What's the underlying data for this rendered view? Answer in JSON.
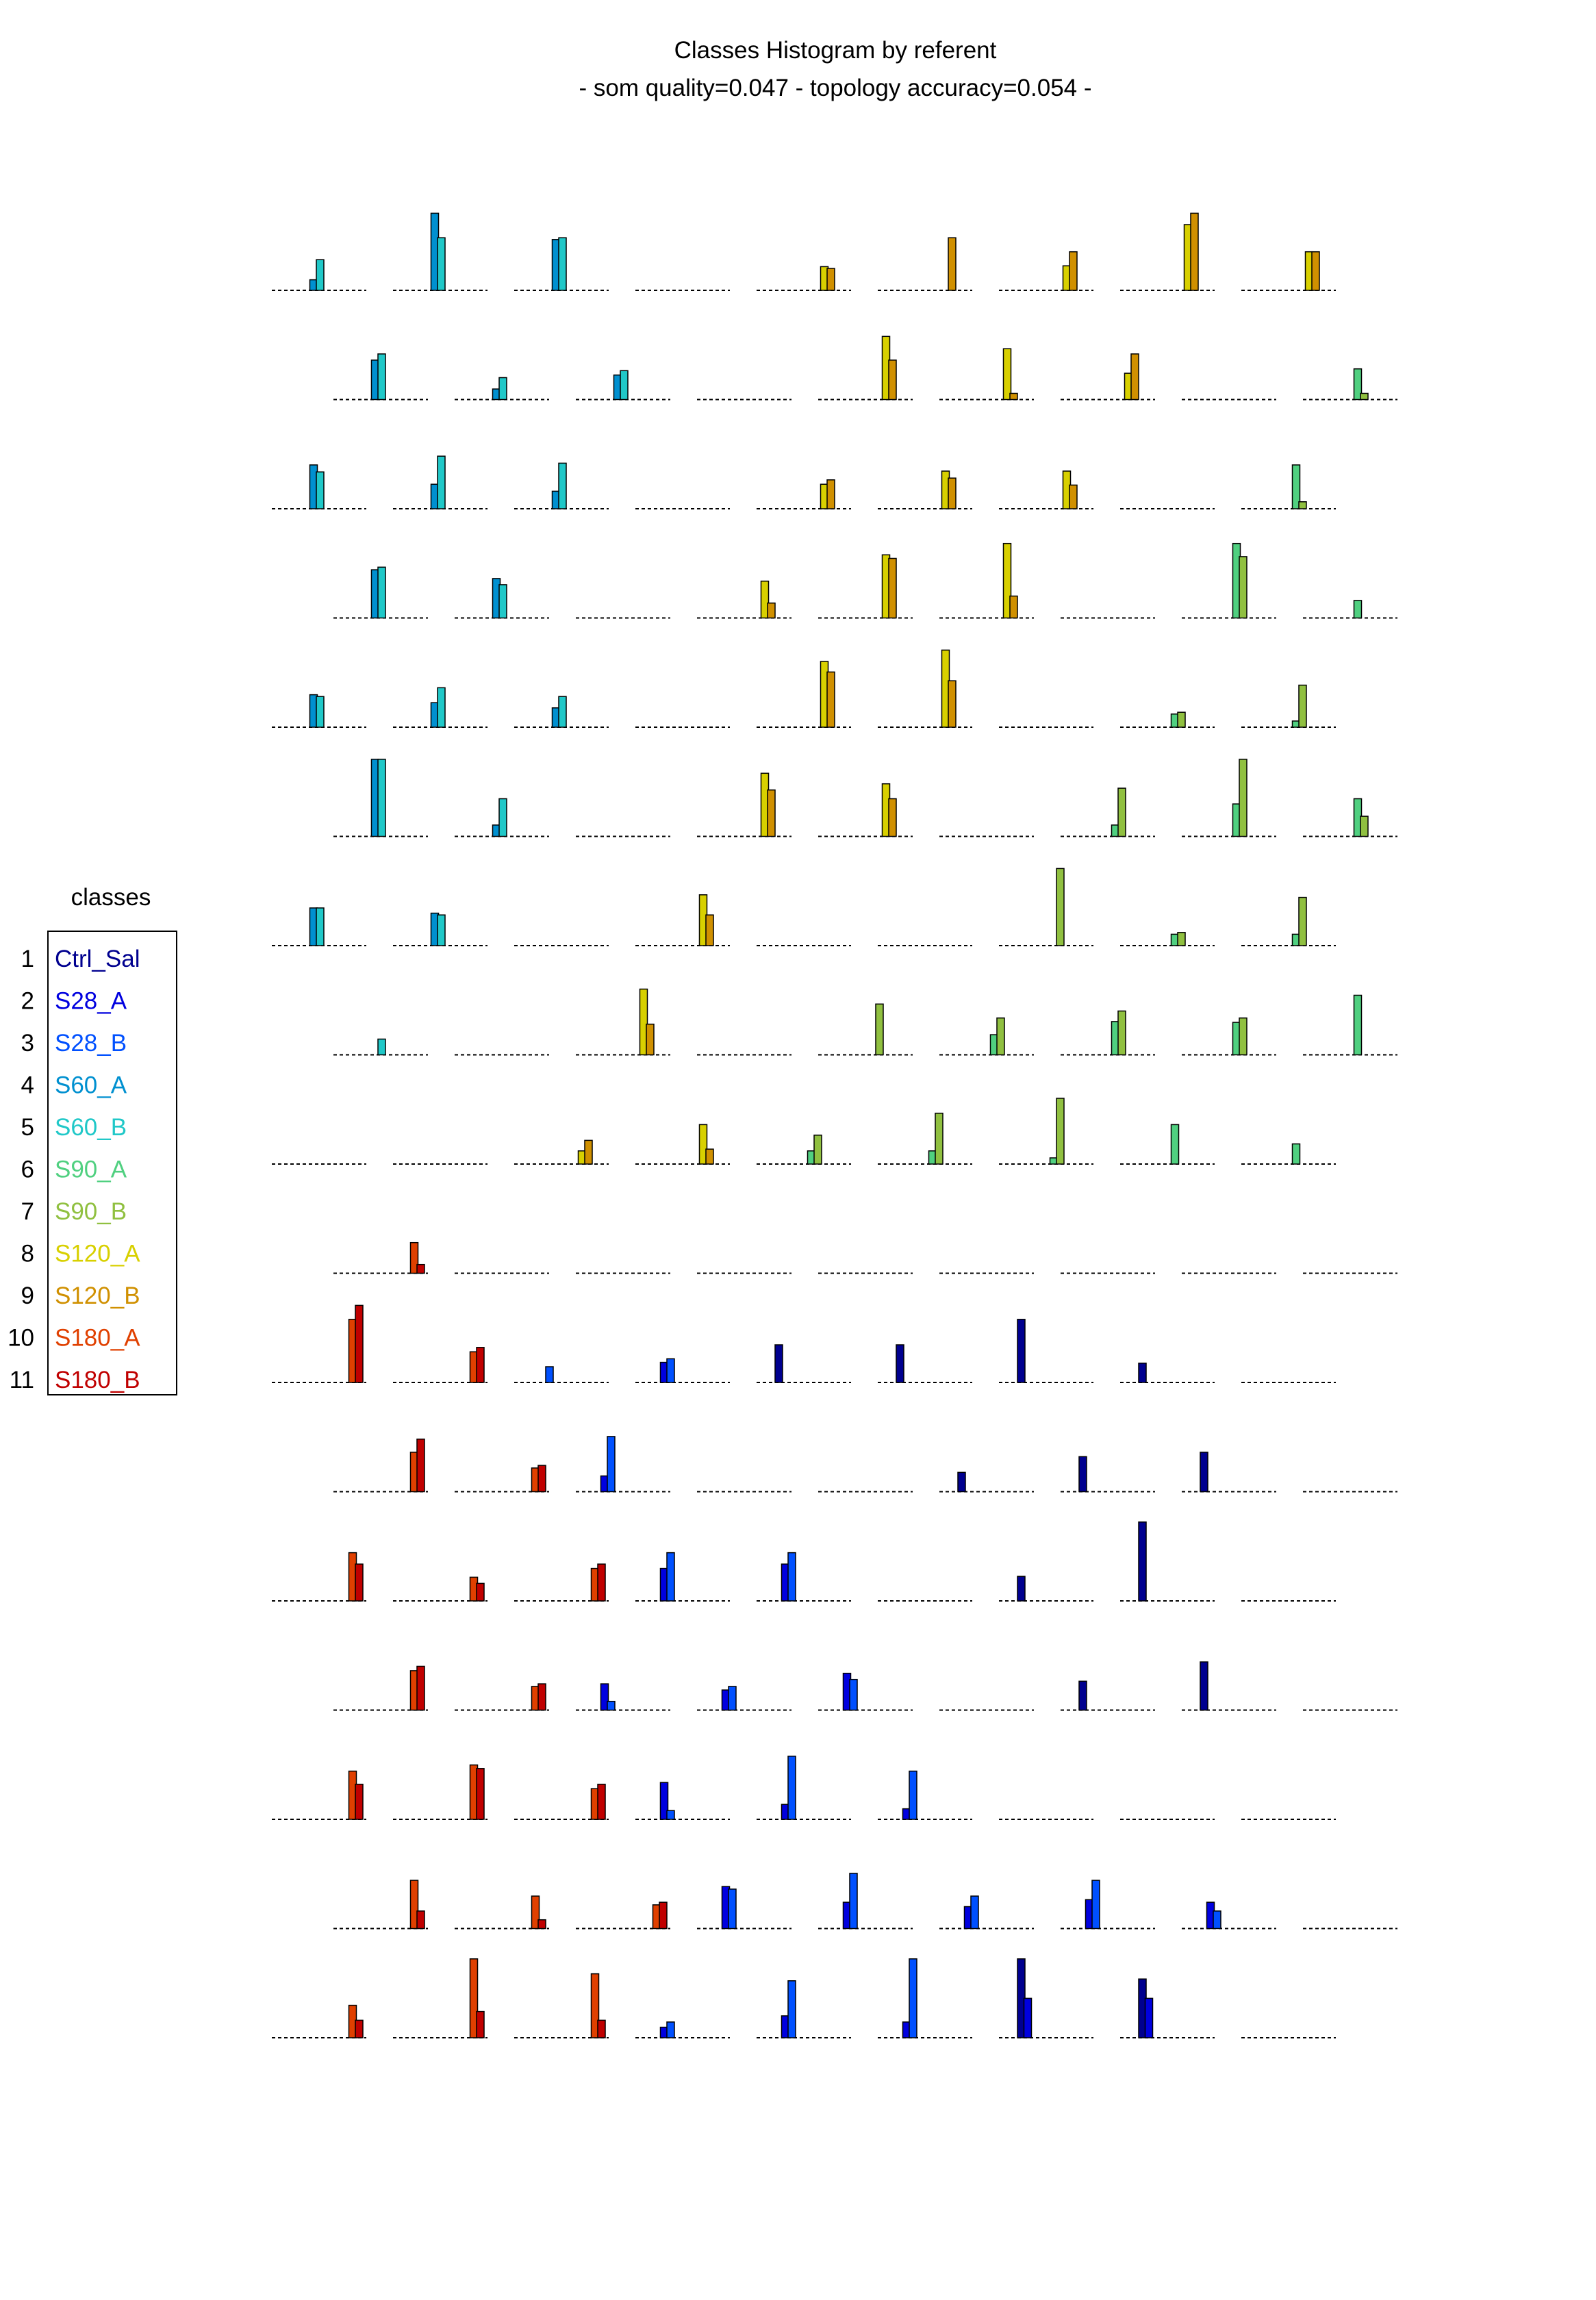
{
  "title": "Classes Histogram by referent",
  "subtitle": "- som quality=0.047 - topology accuracy=0.054 -",
  "legend": {
    "title": "classes",
    "entries": [
      {
        "num": "1",
        "label": "Ctrl_Sal",
        "color": "#00008f"
      },
      {
        "num": "2",
        "label": "S28_A",
        "color": "#0000df"
      },
      {
        "num": "3",
        "label": "S28_B",
        "color": "#0050ff"
      },
      {
        "num": "4",
        "label": "S60_A",
        "color": "#0090d0"
      },
      {
        "num": "5",
        "label": "S60_B",
        "color": "#20c8c8"
      },
      {
        "num": "6",
        "label": "S90_A",
        "color": "#50d080"
      },
      {
        "num": "7",
        "label": "S90_B",
        "color": "#90c040"
      },
      {
        "num": "8",
        "label": "S120_A",
        "color": "#d8d000"
      },
      {
        "num": "9",
        "label": "S120_B",
        "color": "#d09000"
      },
      {
        "num": "10",
        "label": "S180_A",
        "color": "#e04000"
      },
      {
        "num": "11",
        "label": "S180_B",
        "color": "#c00000"
      }
    ]
  },
  "chart_data": {
    "type": "bar",
    "title": "Classes Histogram by referent",
    "subtitle": "- som quality=0.047 - topology accuracy=0.054 -",
    "description_units": "relative bar height within each cell (0-1)",
    "rows": [
      [
        [
          {
            "c": 4,
            "v": 0.12
          },
          {
            "c": 5,
            "v": 0.35
          }
        ],
        [
          {
            "c": 4,
            "v": 0.88
          },
          {
            "c": 5,
            "v": 0.6
          }
        ],
        [
          {
            "c": 4,
            "v": 0.58
          },
          {
            "c": 5,
            "v": 0.6
          }
        ],
        [],
        [
          {
            "c": 8,
            "v": 0.27
          },
          {
            "c": 9,
            "v": 0.25
          }
        ],
        [
          {
            "c": 9,
            "v": 0.6
          }
        ],
        [
          {
            "c": 8,
            "v": 0.28
          },
          {
            "c": 9,
            "v": 0.44
          }
        ],
        [
          {
            "c": 8,
            "v": 0.75
          },
          {
            "c": 9,
            "v": 0.88
          }
        ],
        [
          {
            "c": 8,
            "v": 0.44
          },
          {
            "c": 9,
            "v": 0.44
          }
        ]
      ],
      [
        [
          {
            "c": 4,
            "v": 0.45
          },
          {
            "c": 5,
            "v": 0.52
          }
        ],
        [
          {
            "c": 4,
            "v": 0.12
          },
          {
            "c": 5,
            "v": 0.25
          }
        ],
        [
          {
            "c": 4,
            "v": 0.28
          },
          {
            "c": 5,
            "v": 0.33
          }
        ],
        [],
        [
          {
            "c": 8,
            "v": 0.72
          },
          {
            "c": 9,
            "v": 0.45
          }
        ],
        [
          {
            "c": 8,
            "v": 0.58
          },
          {
            "c": 9,
            "v": 0.07
          }
        ],
        [
          {
            "c": 8,
            "v": 0.3
          },
          {
            "c": 9,
            "v": 0.52
          }
        ],
        [],
        [
          {
            "c": 6,
            "v": 0.35
          },
          {
            "c": 7,
            "v": 0.07
          }
        ]
      ],
      [
        [
          {
            "c": 4,
            "v": 0.5
          },
          {
            "c": 5,
            "v": 0.42
          }
        ],
        [
          {
            "c": 4,
            "v": 0.28
          },
          {
            "c": 5,
            "v": 0.6
          }
        ],
        [
          {
            "c": 4,
            "v": 0.2
          },
          {
            "c": 5,
            "v": 0.52
          }
        ],
        [],
        [
          {
            "c": 8,
            "v": 0.28
          },
          {
            "c": 9,
            "v": 0.33
          }
        ],
        [
          {
            "c": 8,
            "v": 0.43
          },
          {
            "c": 9,
            "v": 0.35
          }
        ],
        [
          {
            "c": 8,
            "v": 0.43
          },
          {
            "c": 9,
            "v": 0.27
          }
        ],
        [],
        [
          {
            "c": 6,
            "v": 0.5
          },
          {
            "c": 7,
            "v": 0.08
          }
        ]
      ],
      [
        [
          {
            "c": 4,
            "v": 0.55
          },
          {
            "c": 5,
            "v": 0.58
          }
        ],
        [
          {
            "c": 4,
            "v": 0.45
          },
          {
            "c": 5,
            "v": 0.38
          }
        ],
        [],
        [
          {
            "c": 8,
            "v": 0.42
          },
          {
            "c": 9,
            "v": 0.17
          }
        ],
        [
          {
            "c": 8,
            "v": 0.72
          },
          {
            "c": 9,
            "v": 0.68
          }
        ],
        [
          {
            "c": 8,
            "v": 0.85
          },
          {
            "c": 9,
            "v": 0.25
          }
        ],
        [],
        [
          {
            "c": 6,
            "v": 0.85
          },
          {
            "c": 7,
            "v": 0.7
          }
        ],
        [
          {
            "c": 6,
            "v": 0.2
          }
        ]
      ],
      [
        [
          {
            "c": 4,
            "v": 0.37
          },
          {
            "c": 5,
            "v": 0.35
          }
        ],
        [
          {
            "c": 4,
            "v": 0.28
          },
          {
            "c": 5,
            "v": 0.45
          }
        ],
        [
          {
            "c": 4,
            "v": 0.22
          },
          {
            "c": 5,
            "v": 0.35
          }
        ],
        [],
        [
          {
            "c": 8,
            "v": 0.75
          },
          {
            "c": 9,
            "v": 0.63
          }
        ],
        [
          {
            "c": 8,
            "v": 0.88
          },
          {
            "c": 9,
            "v": 0.53
          }
        ],
        [],
        [
          {
            "c": 6,
            "v": 0.15
          },
          {
            "c": 7,
            "v": 0.17
          }
        ],
        [
          {
            "c": 6,
            "v": 0.07
          },
          {
            "c": 7,
            "v": 0.48
          }
        ]
      ],
      [
        [
          {
            "c": 4,
            "v": 0.88
          },
          {
            "c": 5,
            "v": 0.88
          }
        ],
        [
          {
            "c": 4,
            "v": 0.13
          },
          {
            "c": 5,
            "v": 0.43
          }
        ],
        [],
        [
          {
            "c": 8,
            "v": 0.72
          },
          {
            "c": 9,
            "v": 0.53
          }
        ],
        [
          {
            "c": 8,
            "v": 0.6
          },
          {
            "c": 9,
            "v": 0.43
          }
        ],
        [],
        [
          {
            "c": 6,
            "v": 0.13
          },
          {
            "c": 7,
            "v": 0.55
          }
        ],
        [
          {
            "c": 6,
            "v": 0.37
          },
          {
            "c": 7,
            "v": 0.88
          }
        ],
        [
          {
            "c": 6,
            "v": 0.43
          },
          {
            "c": 7,
            "v": 0.23
          }
        ]
      ],
      [
        [
          {
            "c": 4,
            "v": 0.43
          },
          {
            "c": 5,
            "v": 0.43
          }
        ],
        [
          {
            "c": 4,
            "v": 0.37
          },
          {
            "c": 5,
            "v": 0.35
          }
        ],
        [],
        [
          {
            "c": 8,
            "v": 0.58
          },
          {
            "c": 9,
            "v": 0.35
          }
        ],
        [],
        [],
        [
          {
            "c": 7,
            "v": 0.88
          }
        ],
        [
          {
            "c": 6,
            "v": 0.13
          },
          {
            "c": 7,
            "v": 0.15
          }
        ],
        [
          {
            "c": 6,
            "v": 0.13
          },
          {
            "c": 7,
            "v": 0.55
          }
        ]
      ],
      [
        [
          {
            "c": 5,
            "v": 0.18
          }
        ],
        [],
        [
          {
            "c": 8,
            "v": 0.75
          },
          {
            "c": 9,
            "v": 0.35
          }
        ],
        [],
        [
          {
            "c": 7,
            "v": 0.58
          }
        ],
        [
          {
            "c": 6,
            "v": 0.23
          },
          {
            "c": 7,
            "v": 0.42
          }
        ],
        [
          {
            "c": 6,
            "v": 0.38
          },
          {
            "c": 7,
            "v": 0.5
          }
        ],
        [
          {
            "c": 6,
            "v": 0.37
          },
          {
            "c": 7,
            "v": 0.42
          }
        ],
        [
          {
            "c": 6,
            "v": 0.68
          }
        ]
      ],
      [
        [],
        [],
        [
          {
            "c": 8,
            "v": 0.15
          },
          {
            "c": 9,
            "v": 0.27
          }
        ],
        [
          {
            "c": 8,
            "v": 0.45
          },
          {
            "c": 9,
            "v": 0.17
          }
        ],
        [
          {
            "c": 6,
            "v": 0.15
          },
          {
            "c": 7,
            "v": 0.33
          }
        ],
        [
          {
            "c": 6,
            "v": 0.15
          },
          {
            "c": 7,
            "v": 0.58
          }
        ],
        [
          {
            "c": 6,
            "v": 0.07
          },
          {
            "c": 7,
            "v": 0.75
          }
        ],
        [
          {
            "c": 6,
            "v": 0.45
          }
        ],
        [
          {
            "c": 6,
            "v": 0.23
          }
        ]
      ],
      [
        [
          {
            "c": 10,
            "v": 0.35
          },
          {
            "c": 11,
            "v": 0.1
          }
        ],
        [],
        [],
        [],
        [],
        [],
        [],
        [],
        []
      ],
      [
        [
          {
            "c": 10,
            "v": 0.72
          },
          {
            "c": 11,
            "v": 0.88
          }
        ],
        [
          {
            "c": 10,
            "v": 0.35
          },
          {
            "c": 11,
            "v": 0.4
          }
        ],
        [
          {
            "c": 3,
            "v": 0.18
          }
        ],
        [
          {
            "c": 2,
            "v": 0.23
          },
          {
            "c": 3,
            "v": 0.27
          }
        ],
        [
          {
            "c": 1,
            "v": 0.43
          }
        ],
        [
          {
            "c": 1,
            "v": 0.43
          }
        ],
        [
          {
            "c": 1,
            "v": 0.72
          }
        ],
        [
          {
            "c": 1,
            "v": 0.22
          }
        ],
        []
      ],
      [
        [
          {
            "c": 10,
            "v": 0.45
          },
          {
            "c": 11,
            "v": 0.6
          }
        ],
        [
          {
            "c": 10,
            "v": 0.27
          },
          {
            "c": 11,
            "v": 0.3
          }
        ],
        [
          {
            "c": 2,
            "v": 0.18
          },
          {
            "c": 3,
            "v": 0.63
          }
        ],
        [],
        [],
        [
          {
            "c": 1,
            "v": 0.22
          }
        ],
        [
          {
            "c": 1,
            "v": 0.4
          }
        ],
        [
          {
            "c": 1,
            "v": 0.45
          }
        ],
        []
      ],
      [
        [
          {
            "c": 10,
            "v": 0.55
          },
          {
            "c": 11,
            "v": 0.42
          }
        ],
        [
          {
            "c": 10,
            "v": 0.27
          },
          {
            "c": 11,
            "v": 0.2
          }
        ],
        [
          {
            "c": 10,
            "v": 0.37
          },
          {
            "c": 11,
            "v": 0.42
          }
        ],
        [
          {
            "c": 2,
            "v": 0.37
          },
          {
            "c": 3,
            "v": 0.55
          }
        ],
        [
          {
            "c": 2,
            "v": 0.42
          },
          {
            "c": 3,
            "v": 0.55
          }
        ],
        [],
        [
          {
            "c": 1,
            "v": 0.28
          }
        ],
        [
          {
            "c": 1,
            "v": 0.9
          }
        ],
        []
      ],
      [
        [
          {
            "c": 10,
            "v": 0.45
          },
          {
            "c": 11,
            "v": 0.5
          }
        ],
        [
          {
            "c": 10,
            "v": 0.27
          },
          {
            "c": 11,
            "v": 0.3
          }
        ],
        [
          {
            "c": 2,
            "v": 0.3
          },
          {
            "c": 3,
            "v": 0.1
          }
        ],
        [
          {
            "c": 2,
            "v": 0.23
          },
          {
            "c": 3,
            "v": 0.27
          }
        ],
        [
          {
            "c": 2,
            "v": 0.42
          },
          {
            "c": 3,
            "v": 0.35
          }
        ],
        [],
        [
          {
            "c": 1,
            "v": 0.33
          }
        ],
        [
          {
            "c": 1,
            "v": 0.55
          }
        ],
        []
      ],
      [
        [
          {
            "c": 10,
            "v": 0.55
          },
          {
            "c": 11,
            "v": 0.4
          }
        ],
        [
          {
            "c": 10,
            "v": 0.62
          },
          {
            "c": 11,
            "v": 0.58
          }
        ],
        [
          {
            "c": 10,
            "v": 0.35
          },
          {
            "c": 11,
            "v": 0.4
          }
        ],
        [
          {
            "c": 2,
            "v": 0.42
          },
          {
            "c": 3,
            "v": 0.1
          }
        ],
        [
          {
            "c": 2,
            "v": 0.17
          },
          {
            "c": 3,
            "v": 0.72
          }
        ],
        [
          {
            "c": 2,
            "v": 0.12
          },
          {
            "c": 3,
            "v": 0.55
          }
        ],
        [],
        [],
        []
      ],
      [
        [
          {
            "c": 10,
            "v": 0.55
          },
          {
            "c": 11,
            "v": 0.2
          }
        ],
        [
          {
            "c": 10,
            "v": 0.37
          },
          {
            "c": 11,
            "v": 0.1
          }
        ],
        [
          {
            "c": 10,
            "v": 0.27
          },
          {
            "c": 11,
            "v": 0.3
          }
        ],
        [
          {
            "c": 2,
            "v": 0.48
          },
          {
            "c": 3,
            "v": 0.45
          }
        ],
        [
          {
            "c": 2,
            "v": 0.3
          },
          {
            "c": 3,
            "v": 0.63
          }
        ],
        [
          {
            "c": 2,
            "v": 0.25
          },
          {
            "c": 3,
            "v": 0.37
          }
        ],
        [
          {
            "c": 2,
            "v": 0.33
          },
          {
            "c": 3,
            "v": 0.55
          }
        ],
        [
          {
            "c": 2,
            "v": 0.3
          },
          {
            "c": 3,
            "v": 0.2
          }
        ],
        []
      ],
      [
        [
          {
            "c": 10,
            "v": 0.37
          },
          {
            "c": 11,
            "v": 0.2
          }
        ],
        [
          {
            "c": 10,
            "v": 0.9
          },
          {
            "c": 11,
            "v": 0.3
          }
        ],
        [
          {
            "c": 10,
            "v": 0.73
          },
          {
            "c": 11,
            "v": 0.2
          }
        ],
        [
          {
            "c": 2,
            "v": 0.12
          },
          {
            "c": 3,
            "v": 0.18
          }
        ],
        [
          {
            "c": 2,
            "v": 0.25
          },
          {
            "c": 3,
            "v": 0.65
          }
        ],
        [
          {
            "c": 2,
            "v": 0.18
          },
          {
            "c": 3,
            "v": 0.9
          }
        ],
        [
          {
            "c": 1,
            "v": 0.9
          },
          {
            "c": 2,
            "v": 0.45
          }
        ],
        [
          {
            "c": 1,
            "v": 0.67
          },
          {
            "c": 2,
            "v": 0.45
          }
        ],
        []
      ]
    ]
  }
}
